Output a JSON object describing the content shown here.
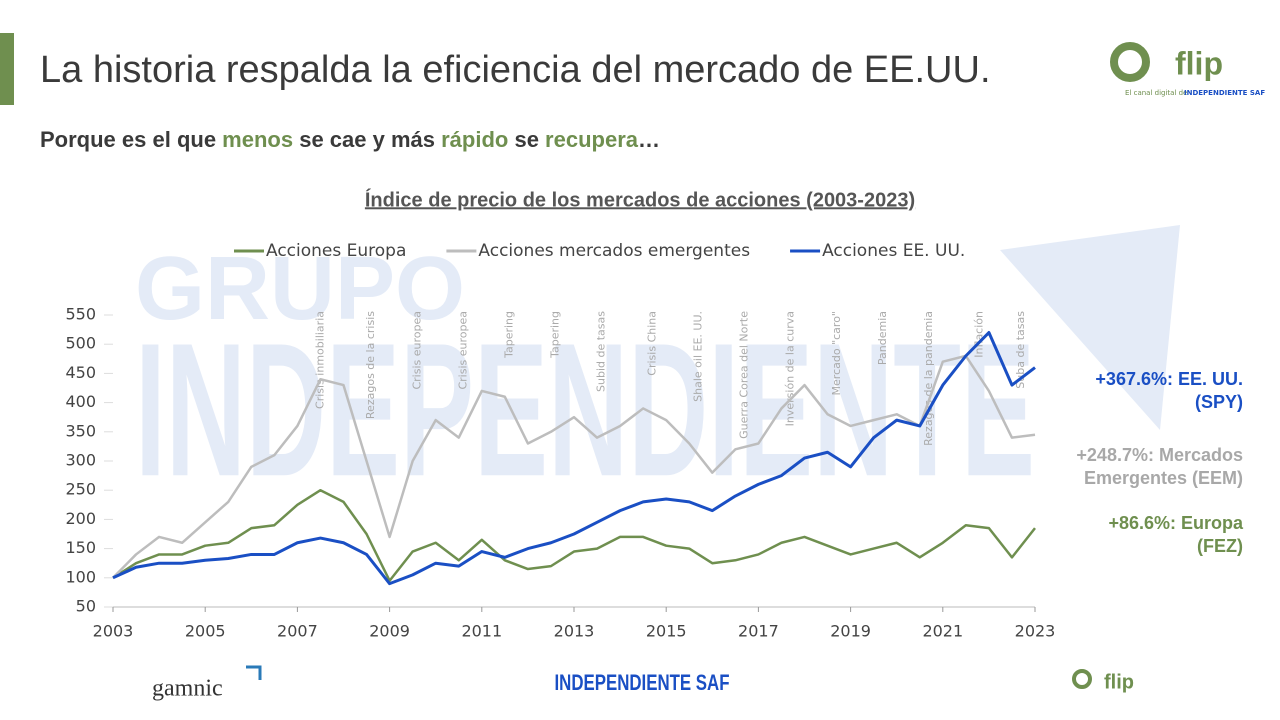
{
  "header": {
    "title": "La historia respalda la eficiencia del mercado de EE.UU.",
    "subtitle": [
      {
        "text": "Porque es el que ",
        "color": "#3a3a3a"
      },
      {
        "text": "menos",
        "color": "#6f8f4f"
      },
      {
        "text": " se cae y más ",
        "color": "#3a3a3a"
      },
      {
        "text": "rápido",
        "color": "#6f8f4f"
      },
      {
        "text": " se ",
        "color": "#3a3a3a"
      },
      {
        "text": "recupera",
        "color": "#6f8f4f"
      },
      {
        "text": "…",
        "color": "#3a3a3a"
      }
    ]
  },
  "logos": {
    "flip": "flip",
    "flip_tagline": "El canal digital de",
    "flip_brand": "INDEPENDIENTE SAF",
    "gamnic": "gamnic",
    "footer_brand": "INDEPENDIENTE SAF",
    "watermark": [
      "GRUPO",
      "INDEPENDIENTE"
    ]
  },
  "chart_data": {
    "type": "line",
    "title": "Índice de precio de los mercados de acciones (2003-2023)",
    "x": [
      2003,
      2003.5,
      2004,
      2004.5,
      2005,
      2005.5,
      2006,
      2006.5,
      2007,
      2007.5,
      2008,
      2008.5,
      2009,
      2009.5,
      2010,
      2010.5,
      2011,
      2011.5,
      2012,
      2012.5,
      2013,
      2013.5,
      2014,
      2014.5,
      2015,
      2015.5,
      2016,
      2016.5,
      2017,
      2017.5,
      2018,
      2018.5,
      2019,
      2019.5,
      2020,
      2020.5,
      2021,
      2021.5,
      2022,
      2022.5,
      2023
    ],
    "series": [
      {
        "name": "Acciones Europa",
        "color": "#6f8f4f",
        "values": [
          100,
          125,
          140,
          140,
          155,
          160,
          185,
          190,
          225,
          250,
          230,
          175,
          95,
          145,
          160,
          130,
          165,
          130,
          115,
          120,
          145,
          150,
          170,
          170,
          155,
          150,
          125,
          130,
          140,
          160,
          170,
          155,
          140,
          150,
          160,
          135,
          160,
          190,
          185,
          135,
          185
        ]
      },
      {
        "name": "Acciones mercados emergentes",
        "color": "#bdbdbd",
        "values": [
          100,
          140,
          170,
          160,
          195,
          230,
          290,
          310,
          360,
          440,
          430,
          300,
          170,
          300,
          370,
          340,
          420,
          410,
          330,
          350,
          375,
          340,
          360,
          390,
          370,
          330,
          280,
          320,
          330,
          390,
          430,
          380,
          360,
          370,
          380,
          360,
          470,
          480,
          420,
          340,
          345
        ]
      },
      {
        "name": "Acciones EE. UU.",
        "color": "#1a4fc4",
        "values": [
          100,
          118,
          125,
          125,
          130,
          133,
          140,
          140,
          160,
          168,
          160,
          140,
          90,
          105,
          125,
          120,
          145,
          135,
          150,
          160,
          175,
          195,
          215,
          230,
          235,
          230,
          215,
          240,
          260,
          275,
          305,
          315,
          290,
          340,
          370,
          360,
          430,
          480,
          520,
          430,
          460
        ]
      }
    ],
    "xlim": [
      2003,
      2023
    ],
    "xticks": [
      2003,
      2005,
      2007,
      2009,
      2011,
      2013,
      2015,
      2017,
      2019,
      2021,
      2023
    ],
    "ylim": [
      50,
      550
    ],
    "yticks": [
      50,
      100,
      150,
      200,
      250,
      300,
      350,
      400,
      450,
      500,
      550
    ],
    "annotations": [
      {
        "text": "Crisis inmobiliaria",
        "x": 2007.5
      },
      {
        "text": "Rezagos de la crisis",
        "x": 2008.6
      },
      {
        "text": "Crisis europea",
        "x": 2009.6
      },
      {
        "text": "Crisis europea",
        "x": 2010.6
      },
      {
        "text": "Tapering",
        "x": 2011.6
      },
      {
        "text": "Tapering",
        "x": 2012.6
      },
      {
        "text": "Subid de tasas",
        "x": 2013.6
      },
      {
        "text": "Crisis China",
        "x": 2014.7
      },
      {
        "text": "Shale oil EE. UU.",
        "x": 2015.7
      },
      {
        "text": "Guerra Corea del Norte",
        "x": 2016.7
      },
      {
        "text": "Inversión de la curva",
        "x": 2017.7
      },
      {
        "text": "Mercado \"caro\"",
        "x": 2018.7
      },
      {
        "text": "Pandemia",
        "x": 2019.7
      },
      {
        "text": "Rezagos de la pandemia",
        "x": 2020.7
      },
      {
        "text": "Inflación",
        "x": 2021.8
      },
      {
        "text": "Suba de tasas",
        "x": 2022.7
      }
    ],
    "end_labels": [
      {
        "lines": [
          "+367.6%: EE. UU.",
          "(SPY)"
        ],
        "color": "#1a4fc4"
      },
      {
        "lines": [
          "+248.7%: Mercados",
          "Emergentes (EEM)"
        ],
        "color": "#a8a8a8"
      },
      {
        "lines": [
          "+86.6%: Europa",
          "(FEZ)"
        ],
        "color": "#6f8f4f"
      }
    ]
  }
}
